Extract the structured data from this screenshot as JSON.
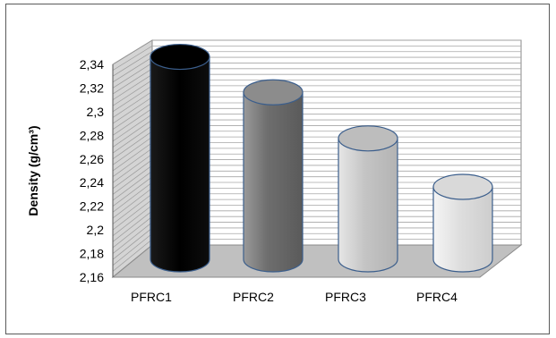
{
  "chart_data": {
    "type": "bar",
    "bar_shape": "cylinder-3d",
    "categories": [
      "PFRC1",
      "PFRC2",
      "PFRC3",
      "PFRC4"
    ],
    "values": [
      2.332,
      2.302,
      2.263,
      2.222
    ],
    "ylabel": "Density (g/cm³)",
    "ylim": [
      2.16,
      2.34
    ],
    "yticks": [
      "2,16",
      "2,18",
      "2,2",
      "2,22",
      "2,24",
      "2,26",
      "2,28",
      "2,3",
      "2,32",
      "2,34"
    ],
    "ytick_values": [
      2.16,
      2.18,
      2.2,
      2.22,
      2.24,
      2.26,
      2.28,
      2.3,
      2.32,
      2.34
    ],
    "grid": true,
    "legend": "none",
    "colors": {
      "bars": [
        "#000000",
        "#7a7a7a",
        "#cfcfcf",
        "#e8e8e8"
      ],
      "bar_outline": "#3b5e8c",
      "floor": "#c0c0c0",
      "back_wall": "#ffffff",
      "side_wall": "#d4d4d4",
      "grid": "#a6a6a6"
    }
  }
}
